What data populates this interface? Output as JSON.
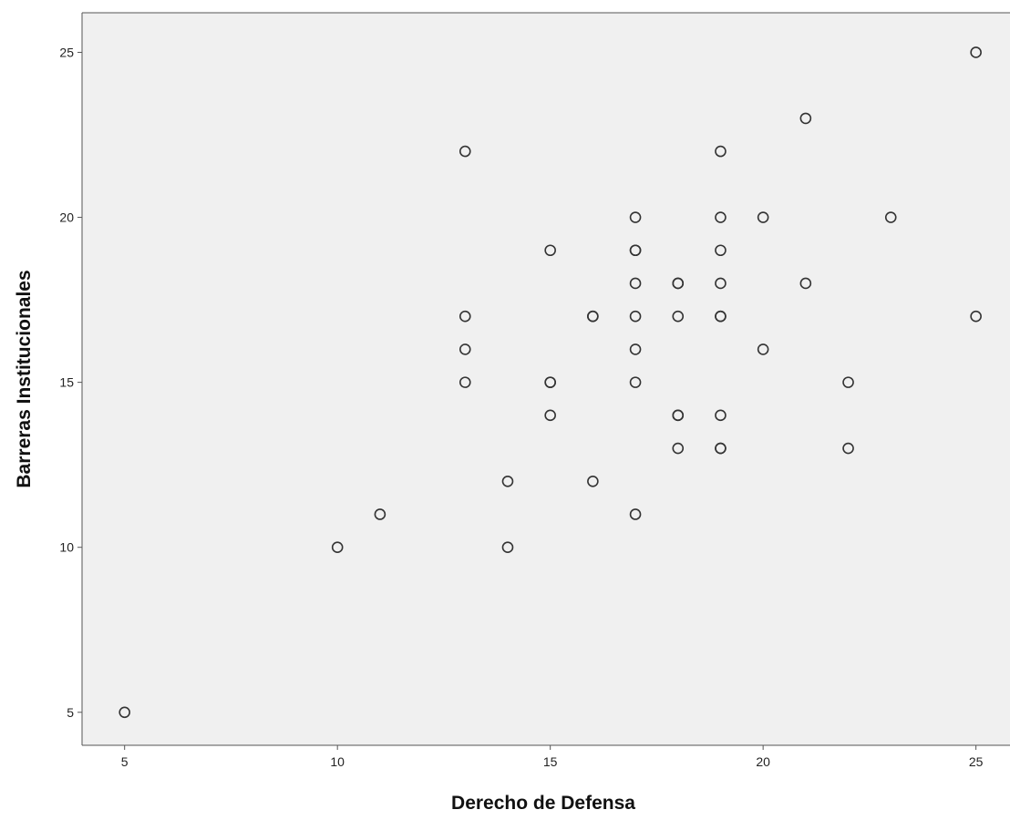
{
  "chart_data": {
    "type": "scatter",
    "title": "",
    "xlabel": "Derecho de Defensa",
    "ylabel": "Barreras Institucionales",
    "xlim": [
      4,
      25.8
    ],
    "ylim": [
      4,
      26.2
    ],
    "xticks": [
      5,
      10,
      15,
      20,
      25
    ],
    "yticks": [
      5,
      10,
      15,
      20,
      25
    ],
    "grid": false,
    "legend": "none",
    "colors": {
      "plot_bg": "#f0f0f0",
      "marker_stroke": "#333333",
      "axis": "#555555",
      "text": "#222222"
    },
    "series": [
      {
        "points": [
          [
            5,
            5
          ],
          [
            10,
            10
          ],
          [
            11,
            11
          ],
          [
            13,
            22
          ],
          [
            13,
            17
          ],
          [
            13,
            16
          ],
          [
            13,
            15
          ],
          [
            14,
            12
          ],
          [
            14,
            10
          ],
          [
            15,
            19
          ],
          [
            15,
            15
          ],
          [
            15,
            15
          ],
          [
            15,
            14
          ],
          [
            16,
            17
          ],
          [
            16,
            17
          ],
          [
            16,
            12
          ],
          [
            17,
            20
          ],
          [
            17,
            19
          ],
          [
            17,
            19
          ],
          [
            17,
            18
          ],
          [
            17,
            17
          ],
          [
            17,
            16
          ],
          [
            17,
            15
          ],
          [
            17,
            11
          ],
          [
            18,
            18
          ],
          [
            18,
            18
          ],
          [
            18,
            17
          ],
          [
            18,
            14
          ],
          [
            18,
            14
          ],
          [
            18,
            13
          ],
          [
            19,
            22
          ],
          [
            19,
            20
          ],
          [
            19,
            19
          ],
          [
            19,
            18
          ],
          [
            19,
            17
          ],
          [
            19,
            17
          ],
          [
            19,
            14
          ],
          [
            19,
            13
          ],
          [
            19,
            13
          ],
          [
            20,
            20
          ],
          [
            20,
            16
          ],
          [
            21,
            23
          ],
          [
            21,
            18
          ],
          [
            22,
            15
          ],
          [
            22,
            13
          ],
          [
            23,
            20
          ],
          [
            25,
            25
          ],
          [
            25,
            17
          ]
        ]
      }
    ]
  }
}
